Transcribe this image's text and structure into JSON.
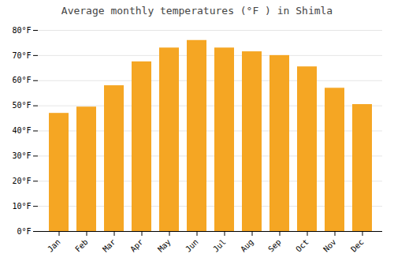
{
  "chart_data": {
    "type": "bar",
    "title": "Average monthly temperatures (°F ) in Shimla",
    "categories": [
      "Jan",
      "Feb",
      "Mar",
      "Apr",
      "May",
      "Jun",
      "Jul",
      "Aug",
      "Sep",
      "Oct",
      "Nov",
      "Dec"
    ],
    "values": [
      47,
      49.5,
      58,
      67.5,
      73,
      76,
      73,
      71.5,
      70,
      65.5,
      57,
      50.5
    ],
    "color": "#F5A623",
    "ylim": [
      0,
      80
    ],
    "yticks": [
      {
        "value": 0,
        "label": "0°F"
      },
      {
        "value": 10,
        "label": "10°F"
      },
      {
        "value": 20,
        "label": "20°F"
      },
      {
        "value": 30,
        "label": "30°F"
      },
      {
        "value": 40,
        "label": "40°F"
      },
      {
        "value": 50,
        "label": "50°F"
      },
      {
        "value": 60,
        "label": "60°F"
      },
      {
        "value": 70,
        "label": "70°F"
      },
      {
        "value": 80,
        "label": "80°F"
      }
    ],
    "grid": true
  }
}
